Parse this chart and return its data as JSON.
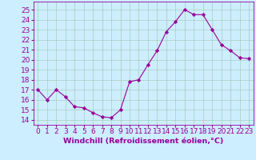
{
  "x": [
    0,
    1,
    2,
    3,
    4,
    5,
    6,
    7,
    8,
    9,
    10,
    11,
    12,
    13,
    14,
    15,
    16,
    17,
    18,
    19,
    20,
    21,
    22,
    23
  ],
  "y": [
    17.0,
    16.0,
    17.0,
    16.3,
    15.3,
    15.2,
    14.7,
    14.3,
    14.2,
    15.0,
    17.8,
    18.0,
    19.5,
    20.9,
    22.8,
    23.8,
    25.0,
    24.5,
    24.5,
    23.0,
    21.5,
    20.9,
    20.2,
    20.1
  ],
  "line_color": "#990099",
  "marker": "D",
  "marker_size": 2.2,
  "bg_color": "#cceeff",
  "grid_color": "#aaccbb",
  "xlabel": "Windchill (Refroidissement éolien,°C)",
  "ylabel_ticks": [
    14,
    15,
    16,
    17,
    18,
    19,
    20,
    21,
    22,
    23,
    24,
    25
  ],
  "xlim": [
    -0.5,
    23.5
  ],
  "ylim": [
    13.5,
    25.8
  ],
  "tick_fontsize": 6.5,
  "xlabel_fontsize": 6.8
}
